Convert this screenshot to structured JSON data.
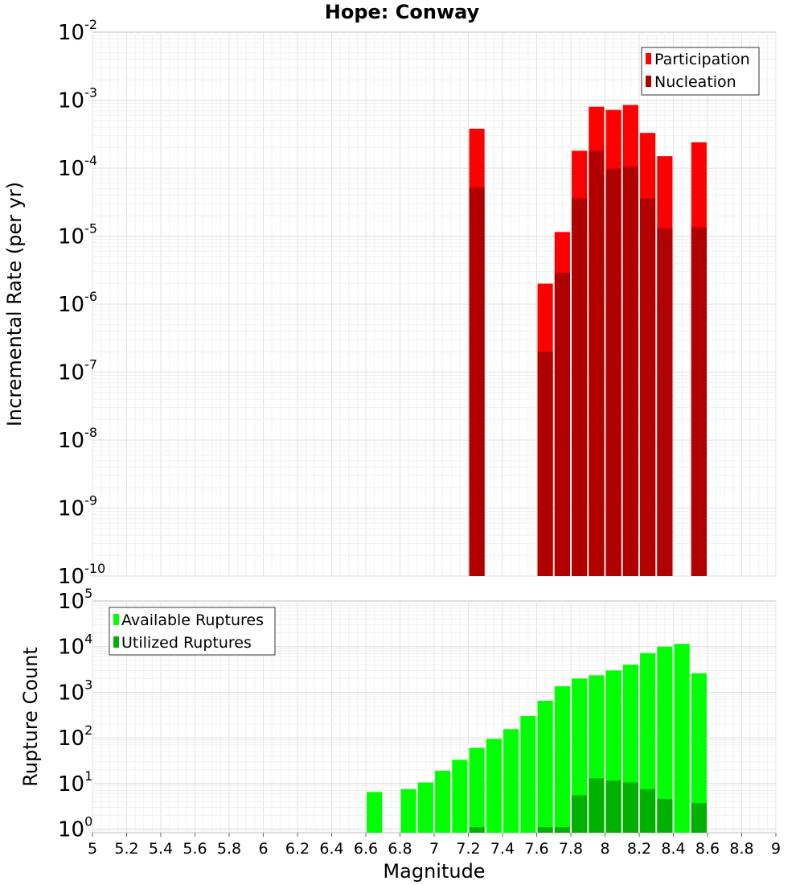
{
  "chart_data": [
    {
      "type": "bar",
      "scale": "log",
      "title": "Hope: Conway",
      "ylabel": "Incremental Rate (per yr)",
      "xlabel": "",
      "xlim": [
        5,
        9
      ],
      "ylim_exponent": [
        -10,
        -2
      ],
      "y_tick_exponents": [
        "-10",
        "-9",
        "-8",
        "-7",
        "-6",
        "-5",
        "-4",
        "-3",
        "-2"
      ],
      "bar_width": 0.09,
      "colors": {
        "Participation": "#ff0000",
        "Nucleation": "#b00000"
      },
      "legend_position": "top-right",
      "series": [
        {
          "name": "Participation",
          "x": [
            7.25,
            7.65,
            7.75,
            7.85,
            7.95,
            8.05,
            8.15,
            8.25,
            8.35,
            8.55
          ],
          "values": [
            0.00038,
            2e-06,
            1.15e-05,
            0.00018,
            0.0008,
            0.00072,
            0.00085,
            0.00033,
            0.00015,
            0.00024
          ]
        },
        {
          "name": "Nucleation",
          "x": [
            7.25,
            7.65,
            7.75,
            7.85,
            7.95,
            8.05,
            8.15,
            8.25,
            8.35,
            8.55
          ],
          "values": [
            5.2e-05,
            2e-07,
            2.9e-06,
            3.6e-05,
            0.00018,
            9.8e-05,
            0.000105,
            3.6e-05,
            1.3e-05,
            1.35e-05
          ]
        }
      ]
    },
    {
      "type": "bar",
      "scale": "log",
      "title": "",
      "ylabel": "Rupture Count",
      "xlabel": "Magnitude",
      "xlim": [
        5,
        9
      ],
      "ylim_exponent": [
        -0.08,
        5
      ],
      "y_tick_exponents": [
        "0",
        "1",
        "2",
        "3",
        "4",
        "5"
      ],
      "x_ticks": [
        "5",
        "5.2",
        "5.4",
        "5.6",
        "5.8",
        "6",
        "6.2",
        "6.4",
        "6.6",
        "6.8",
        "7",
        "7.2",
        "7.4",
        "7.6",
        "7.8",
        "8",
        "8.2",
        "8.4",
        "8.6",
        "8.8",
        "9"
      ],
      "bar_width": 0.09,
      "colors": {
        "Available Ruptures": "#00ff00",
        "Utilized Ruptures": "#00b000"
      },
      "legend_position": "top-left",
      "series": [
        {
          "name": "Available Ruptures",
          "x": [
            6.65,
            6.85,
            6.95,
            7.05,
            7.15,
            7.25,
            7.35,
            7.45,
            7.55,
            7.65,
            7.75,
            7.85,
            7.95,
            8.05,
            8.15,
            8.25,
            8.35,
            8.45,
            8.55
          ],
          "values": [
            6.5,
            7.5,
            10.5,
            19,
            33,
            60,
            95,
            155,
            300,
            650,
            1350,
            2000,
            2350,
            3000,
            4000,
            7200,
            10000,
            11500,
            2600
          ]
        },
        {
          "name": "Utilized Ruptures",
          "x": [
            7.25,
            7.65,
            7.75,
            7.85,
            7.95,
            8.05,
            8.15,
            8.25,
            8.35,
            8.55
          ],
          "values": [
            1.1,
            1.1,
            1.1,
            5.5,
            13,
            11.5,
            10.5,
            7.5,
            4.6,
            3.7
          ]
        }
      ]
    }
  ]
}
